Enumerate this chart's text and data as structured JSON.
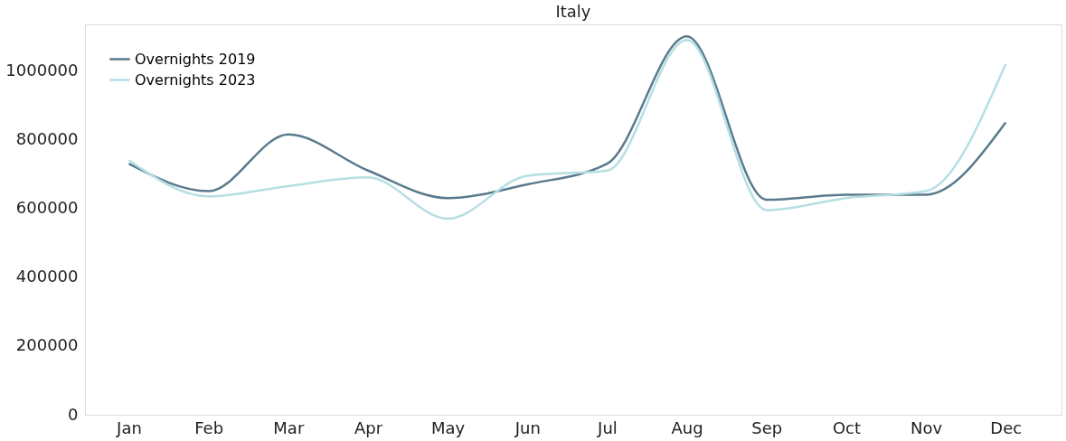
{
  "chart_data": {
    "type": "line",
    "title": "Italy",
    "categories": [
      "Jan",
      "Feb",
      "Mar",
      "Apr",
      "May",
      "Jun",
      "Jul",
      "Aug",
      "Sep",
      "Oct",
      "Nov",
      "Dec"
    ],
    "series": [
      {
        "name": "Overnights 2019",
        "color": "#5a7a8c",
        "values": [
          730000,
          650000,
          815000,
          710000,
          630000,
          670000,
          730000,
          1100000,
          625000,
          640000,
          640000,
          850000
        ]
      },
      {
        "name": "Overnights 2023",
        "color": "#b5dfe3",
        "values": [
          740000,
          635000,
          665000,
          690000,
          570000,
          695000,
          710000,
          1090000,
          595000,
          630000,
          650000,
          1020000
        ]
      }
    ],
    "ylim": [
      0,
      1135000
    ],
    "yticks": [
      0,
      200000,
      400000,
      600000,
      800000,
      1000000
    ],
    "grid": false,
    "legend": "top left",
    "marker": "none",
    "line_style": "solid"
  }
}
